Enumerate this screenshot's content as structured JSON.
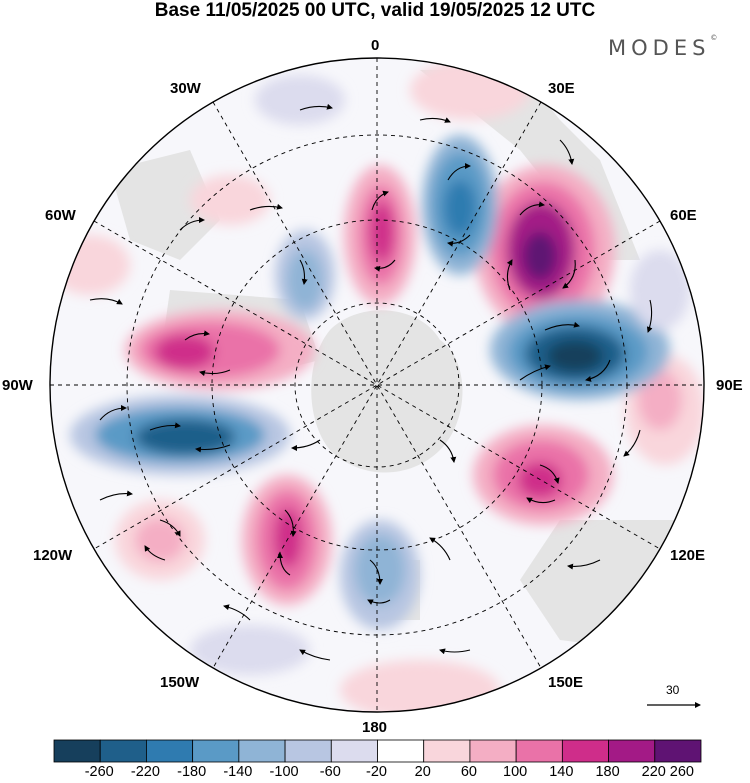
{
  "title": "Base 11/05/2025 00 UTC, valid 19/05/2025 12 UTC",
  "brand": {
    "name": "MODES",
    "mark": "©"
  },
  "longitude_labels": {
    "top": "0",
    "bottom": "180",
    "left": "90W",
    "right": "90E",
    "upper_left_1": "30W",
    "upper_left_2": "60W",
    "upper_right_1": "30E",
    "upper_right_2": "60E",
    "lower_left_1": "120W",
    "lower_left_2": "150W",
    "lower_right_1": "120E",
    "lower_right_2": "150E"
  },
  "vector_reference": {
    "label": "30"
  },
  "colorbar": {
    "labels": [
      "-260",
      "-220",
      "-180",
      "-140",
      "-100",
      "-60",
      "-20",
      "20",
      "60",
      "100",
      "140",
      "180",
      "220",
      "260"
    ],
    "colors": [
      "#163f5c",
      "#1f5f8a",
      "#2f7bb0",
      "#5a9ac6",
      "#8fb4d6",
      "#b8c6e2",
      "#dcdcee",
      "#ffffff",
      "#f9d6dc",
      "#f4aec4",
      "#ea72a8",
      "#cf2d8a",
      "#a31a86",
      "#5f1373"
    ]
  },
  "map_features": {
    "projection": "south-polar-stereographic",
    "fill": "height-anomaly",
    "vectors": "wind-arrows",
    "land_shading": "#e6e6e6"
  }
}
